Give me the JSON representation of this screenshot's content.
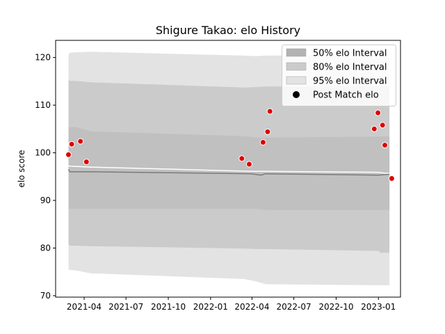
{
  "chart_data": {
    "type": "area",
    "title": "Shigure Takao: elo History",
    "xlabel": "",
    "ylabel": "elo score",
    "xlim": [
      "2021-01-29",
      "2023-02-18"
    ],
    "ylim": [
      69.7,
      123.6
    ],
    "x_ticks": [
      "2021-04-01",
      "2021-07-01",
      "2021-10-01",
      "2022-01-01",
      "2022-04-01",
      "2022-07-01",
      "2022-10-01",
      "2023-01-01"
    ],
    "x_tick_labels": [
      "2021-04",
      "2021-07",
      "2021-10",
      "2022-01",
      "2022-04",
      "2022-07",
      "2022-10",
      "2023-01"
    ],
    "y_ticks": [
      70,
      80,
      90,
      100,
      110,
      120
    ],
    "legend_position": "top-right",
    "grid": false,
    "legend": [
      {
        "label": "50% elo Interval",
        "kind": "band",
        "color": "#b3b3b3"
      },
      {
        "label": "80% elo Interval",
        "kind": "band",
        "color": "#cbcbcb"
      },
      {
        "label": "95% elo Interval",
        "kind": "band",
        "color": "#e3e3e3"
      },
      {
        "label": "Post Match elo",
        "kind": "marker",
        "color": "#000000"
      }
    ],
    "bands": {
      "x": [
        "2021-02-26",
        "2021-03-01",
        "2021-03-15",
        "2021-04-15",
        "2022-03-15",
        "2022-04-10",
        "2022-05-01",
        "2023-01-01",
        "2023-01-05",
        "2023-01-25"
      ],
      "band95": {
        "color": "#e3e3e3",
        "upper": [
          120.5,
          121.0,
          121.1,
          121.2,
          120.4,
          120.3,
          120.4,
          120.5,
          120.5,
          120.5
        ],
        "lower": [
          75.5,
          75.4,
          75.3,
          74.7,
          73.5,
          73.0,
          72.4,
          72.2,
          72.2,
          72.2
        ]
      },
      "band80": {
        "color": "#cbcbcb",
        "upper": [
          115.4,
          115.1,
          115.1,
          114.8,
          113.7,
          113.8,
          113.9,
          114.0,
          114.0,
          114.0
        ],
        "lower": [
          80.8,
          80.5,
          80.5,
          80.4,
          79.9,
          79.8,
          79.8,
          79.4,
          79.0,
          79.0
        ]
      },
      "band50": {
        "color": "#c0c0c0",
        "upper": [
          105.4,
          105.4,
          105.4,
          104.5,
          103.5,
          103.2,
          103.2,
          103.4,
          103.4,
          103.4
        ],
        "lower": [
          88.3,
          88.2,
          88.2,
          88.2,
          88.2,
          88.2,
          88.0,
          88.0,
          88.0,
          88.0
        ]
      }
    },
    "series": [
      {
        "kind": "line",
        "color": "#ffffff",
        "x": [
          "2021-02-26",
          "2021-03-01",
          "2021-04-15",
          "2022-04-01",
          "2022-05-01",
          "2023-01-01",
          "2023-01-15",
          "2023-01-25"
        ],
        "values": [
          97.3,
          97.2,
          97.0,
          96.1,
          96.1,
          95.9,
          95.7,
          95.7
        ]
      },
      {
        "kind": "line",
        "color": "#7a7a7a",
        "x": [
          "2021-02-26",
          "2021-03-01",
          "2021-04-15",
          "2022-04-01",
          "2022-04-20",
          "2022-05-01",
          "2023-01-01",
          "2023-01-25"
        ],
        "values": [
          96.5,
          96.0,
          96.0,
          95.6,
          95.3,
          95.6,
          95.3,
          95.5
        ]
      },
      {
        "kind": "scatter",
        "color": "#dd0000",
        "x": [
          "2021-02-26",
          "2021-03-05",
          "2021-03-24",
          "2021-04-06",
          "2022-03-10",
          "2022-03-26",
          "2022-04-25",
          "2022-05-05",
          "2022-05-10",
          "2022-12-23",
          "2022-12-31",
          "2023-01-10",
          "2023-01-15",
          "2023-01-30"
        ],
        "values": [
          99.6,
          101.8,
          102.4,
          98.1,
          98.8,
          97.6,
          102.2,
          104.4,
          108.7,
          105.0,
          108.4,
          105.8,
          101.6,
          94.6
        ]
      }
    ]
  }
}
